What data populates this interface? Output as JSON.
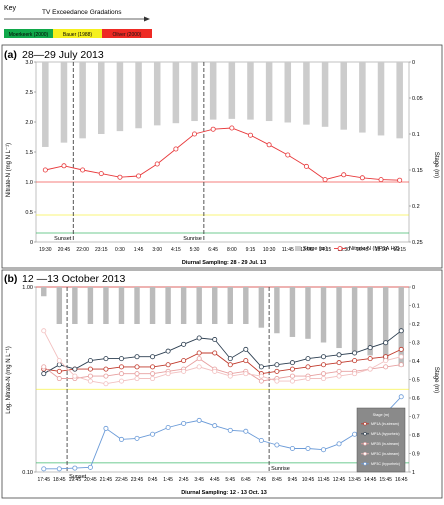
{
  "key": {
    "title": "Key",
    "arrow_label": "TV Exceedance Gradations",
    "gradations": [
      {
        "label": "Moerkeerk (2000)",
        "color": "#10a84a"
      },
      {
        "label": "Bauer (1988)",
        "color": "#f5f01e"
      },
      {
        "label": "Oliver (2000)",
        "color": "#ee2a24"
      }
    ]
  },
  "chart_data": [
    {
      "panel": "(a)",
      "type": "line",
      "title": "28—29 July 2013",
      "xlabel": "Diurnal Sampling: 28 - 29 Jul. 13",
      "ylabel": "Nitrate-N (mg N L⁻¹)",
      "y2label": "Stage (m)",
      "categories": [
        "19:30",
        "20:45",
        "22:00",
        "23:15",
        "0:30",
        "1:45",
        "3:00",
        "4:15",
        "5:30",
        "6:45",
        "8:00",
        "9:15",
        "10:30",
        "11:45",
        "13:00",
        "14:15",
        "15:30",
        "16:45",
        "18:00",
        "19:15"
      ],
      "ylim": [
        0,
        3.0
      ],
      "yticks": [
        "0",
        "0.5",
        "1.0",
        "1.5",
        "2.0",
        "2.5",
        "3.0"
      ],
      "y2lim": [
        0,
        0.25
      ],
      "y2ticks": [
        "0",
        "0.05",
        "0.1",
        "0.15",
        "0.2",
        "0.25"
      ],
      "y2_inverted": true,
      "series": [
        {
          "name": "Stage (m)",
          "kind": "bar",
          "color": "#cccccc",
          "values": [
            0.118,
            0.112,
            0.106,
            0.1,
            0.096,
            0.092,
            0.088,
            0.085,
            0.082,
            0.08,
            0.079,
            0.08,
            0.082,
            0.084,
            0.087,
            0.09,
            0.094,
            0.098,
            0.102,
            0.106
          ]
        },
        {
          "name": "Nitrate-N (MP1A HZ)",
          "kind": "line",
          "color": "#e8393b",
          "values": [
            1.2,
            1.27,
            1.2,
            1.14,
            1.08,
            1.1,
            1.3,
            1.55,
            1.8,
            1.88,
            1.9,
            1.78,
            1.62,
            1.45,
            1.26,
            1.04,
            1.12,
            1.07,
            1.04,
            1.03
          ]
        }
      ],
      "annotations": [
        "Sunset",
        "Sunrise"
      ],
      "thresholds": [
        {
          "value": 1.0,
          "color": "#ee2a24"
        },
        {
          "value": 0.45,
          "color": "#f5f01e"
        },
        {
          "value": 0.15,
          "color": "#10a84a"
        }
      ]
    },
    {
      "panel": "(b)",
      "type": "line",
      "title": "12 —13 October  2013",
      "xlabel": "Diurnal Sampling: 12 - 13 Oct. 13",
      "ylabel": "Log. Nitrate-N (mg N L⁻¹)",
      "y2label": "Stage (m)",
      "y_scale": "log",
      "categories": [
        "17:45",
        "18:45",
        "19:45",
        "20:45",
        "21:45",
        "22:45",
        "23:45",
        "0:45",
        "1:45",
        "2:45",
        "3:45",
        "4:45",
        "5:45",
        "6:45",
        "7:45",
        "8:45",
        "9:45",
        "10:45",
        "11:45",
        "12:45",
        "13:45",
        "14:45",
        "15:45",
        "16:45"
      ],
      "ylim": [
        0.1,
        1.0
      ],
      "yticks": [
        "0.10",
        "1.00"
      ],
      "y2lim": [
        0,
        1.0
      ],
      "y2ticks": [
        "0",
        "0.1",
        "0.2",
        "0.3",
        "0.4",
        "0.5",
        "0.6",
        "0.7",
        "0.8",
        "0.9",
        "1"
      ],
      "y2_inverted": true,
      "legend": {
        "title": "Stage (m)",
        "entries": [
          "MP1A (in-stream)",
          "MP1A (hyporheic)",
          "MP2B (in-stream)",
          "MP3C (in-stream)",
          "MP3C (hyporheic)"
        ]
      },
      "series": [
        {
          "name": "Stage (m)",
          "kind": "bar",
          "color": "#bbbbbb",
          "values": [
            0.05,
            0.2,
            0.2,
            0.2,
            0.2,
            0.2,
            0.2,
            0.2,
            0.2,
            0.2,
            0.2,
            0.2,
            0.2,
            0.2,
            0.22,
            0.25,
            0.27,
            0.28,
            0.3,
            0.33,
            0.35,
            0.37,
            0.4,
            0.43
          ]
        },
        {
          "name": "MP1A (in-stream)",
          "kind": "line",
          "color": "#c0392b",
          "values": [
            0.36,
            0.35,
            0.36,
            0.36,
            0.36,
            0.37,
            0.37,
            0.37,
            0.38,
            0.4,
            0.44,
            0.44,
            0.38,
            0.4,
            0.34,
            0.35,
            0.36,
            0.37,
            0.38,
            0.39,
            0.4,
            0.41,
            0.42,
            0.46
          ]
        },
        {
          "name": "MP1A (hyporheic)",
          "kind": "line",
          "color": "#2c3e50",
          "values": [
            0.34,
            0.38,
            0.36,
            0.4,
            0.41,
            0.41,
            0.42,
            0.42,
            0.45,
            0.49,
            0.53,
            0.52,
            0.41,
            0.46,
            0.37,
            0.38,
            0.39,
            0.41,
            0.42,
            0.43,
            0.44,
            0.47,
            0.5,
            0.58
          ]
        },
        {
          "name": "MP2B (in-stream)",
          "kind": "line",
          "color": "#e7a0a0",
          "values": [
            0.37,
            0.32,
            0.32,
            0.33,
            0.33,
            0.34,
            0.34,
            0.34,
            0.35,
            0.36,
            0.41,
            0.36,
            0.34,
            0.35,
            0.31,
            0.32,
            0.33,
            0.33,
            0.34,
            0.35,
            0.35,
            0.36,
            0.37,
            0.38
          ]
        },
        {
          "name": "MP3C (in-stream)",
          "kind": "line",
          "color": "#f2c0c0",
          "values": [
            0.58,
            0.4,
            0.33,
            0.31,
            0.3,
            0.31,
            0.32,
            0.32,
            0.34,
            0.35,
            0.37,
            0.35,
            0.33,
            0.34,
            0.33,
            0.31,
            0.31,
            0.32,
            0.32,
            0.33,
            0.34,
            0.36,
            0.4,
            0.42
          ]
        },
        {
          "name": "MP3C (hyporheic)",
          "kind": "line",
          "color": "#6b9bd8",
          "values": [
            0.104,
            0.104,
            0.105,
            0.106,
            0.172,
            0.15,
            0.152,
            0.16,
            0.174,
            0.183,
            0.19,
            0.178,
            0.168,
            0.166,
            0.148,
            0.14,
            0.134,
            0.134,
            0.132,
            0.142,
            0.16,
            0.182,
            0.208,
            0.255
          ]
        }
      ],
      "annotations": [
        "Sunset",
        "Sunrise"
      ],
      "thresholds": [
        {
          "value": 1.0,
          "color": "#ee2a24"
        },
        {
          "value": 0.28,
          "color": "#f5f01e"
        },
        {
          "value": 0.112,
          "color": "#10a84a"
        }
      ]
    }
  ]
}
